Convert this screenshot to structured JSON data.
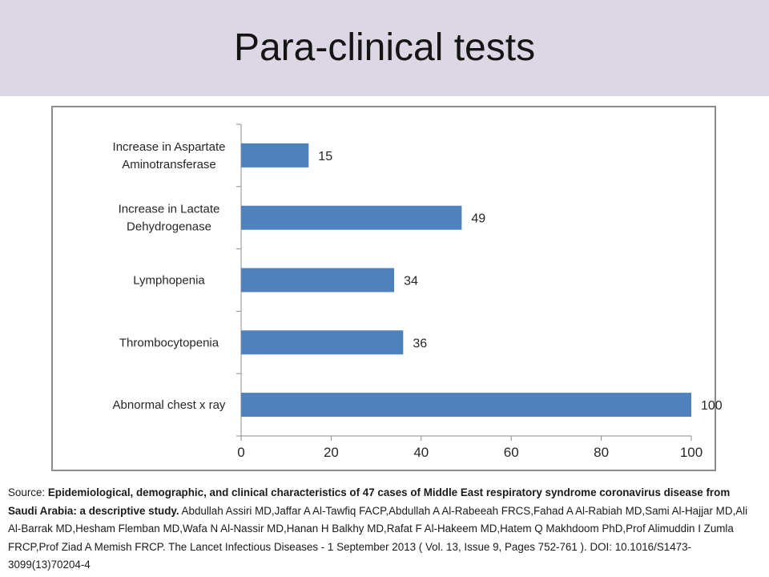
{
  "slide": {
    "title": "Para-clinical tests"
  },
  "chart_data": {
    "type": "bar",
    "orientation": "horizontal",
    "categories": [
      [
        "Increase in Aspartate",
        "Aminotransferase"
      ],
      [
        "Increase in Lactate",
        "Dehydrogenase"
      ],
      [
        "Lymphopenia"
      ],
      [
        "Thrombocytopenia"
      ],
      [
        "Abnormal chest x ray"
      ]
    ],
    "values": [
      15,
      49,
      34,
      36,
      100
    ],
    "xlim": [
      0,
      100
    ],
    "xticks": [
      0,
      20,
      40,
      60,
      80,
      100
    ],
    "bar_color": "#4f81bd",
    "grid": false,
    "legend": "none"
  },
  "source": {
    "prefix": "Source: ",
    "article_title": "Epidemiological, demographic, and clinical characteristics of 47 cases of Middle East respiratory syndrome coronavirus disease from Saudi Arabia: a descriptive study.",
    "authors_citation": " Abdullah Assiri MD,Jaffar A Al-Tawfiq FACP,Abdullah A Al-Rabeeah FRCS,Fahad A Al-Rabiah MD,Sami Al-Hajjar MD,Ali Al-Barrak MD,Hesham Flemban MD,Wafa N Al-Nassir MD,Hanan H Balkhy MD,Rafat F Al-Hakeem MD,Hatem Q Makhdoom PhD,Prof Alimuddin I Zumla FRCP,Prof Ziad A Memish FRCP. The Lancet Infectious Diseases - 1 September 2013 ( Vol. 13, Issue 9, Pages 752-761 ). DOI: 10.1016/S1473-3099(13)70204-4"
  }
}
